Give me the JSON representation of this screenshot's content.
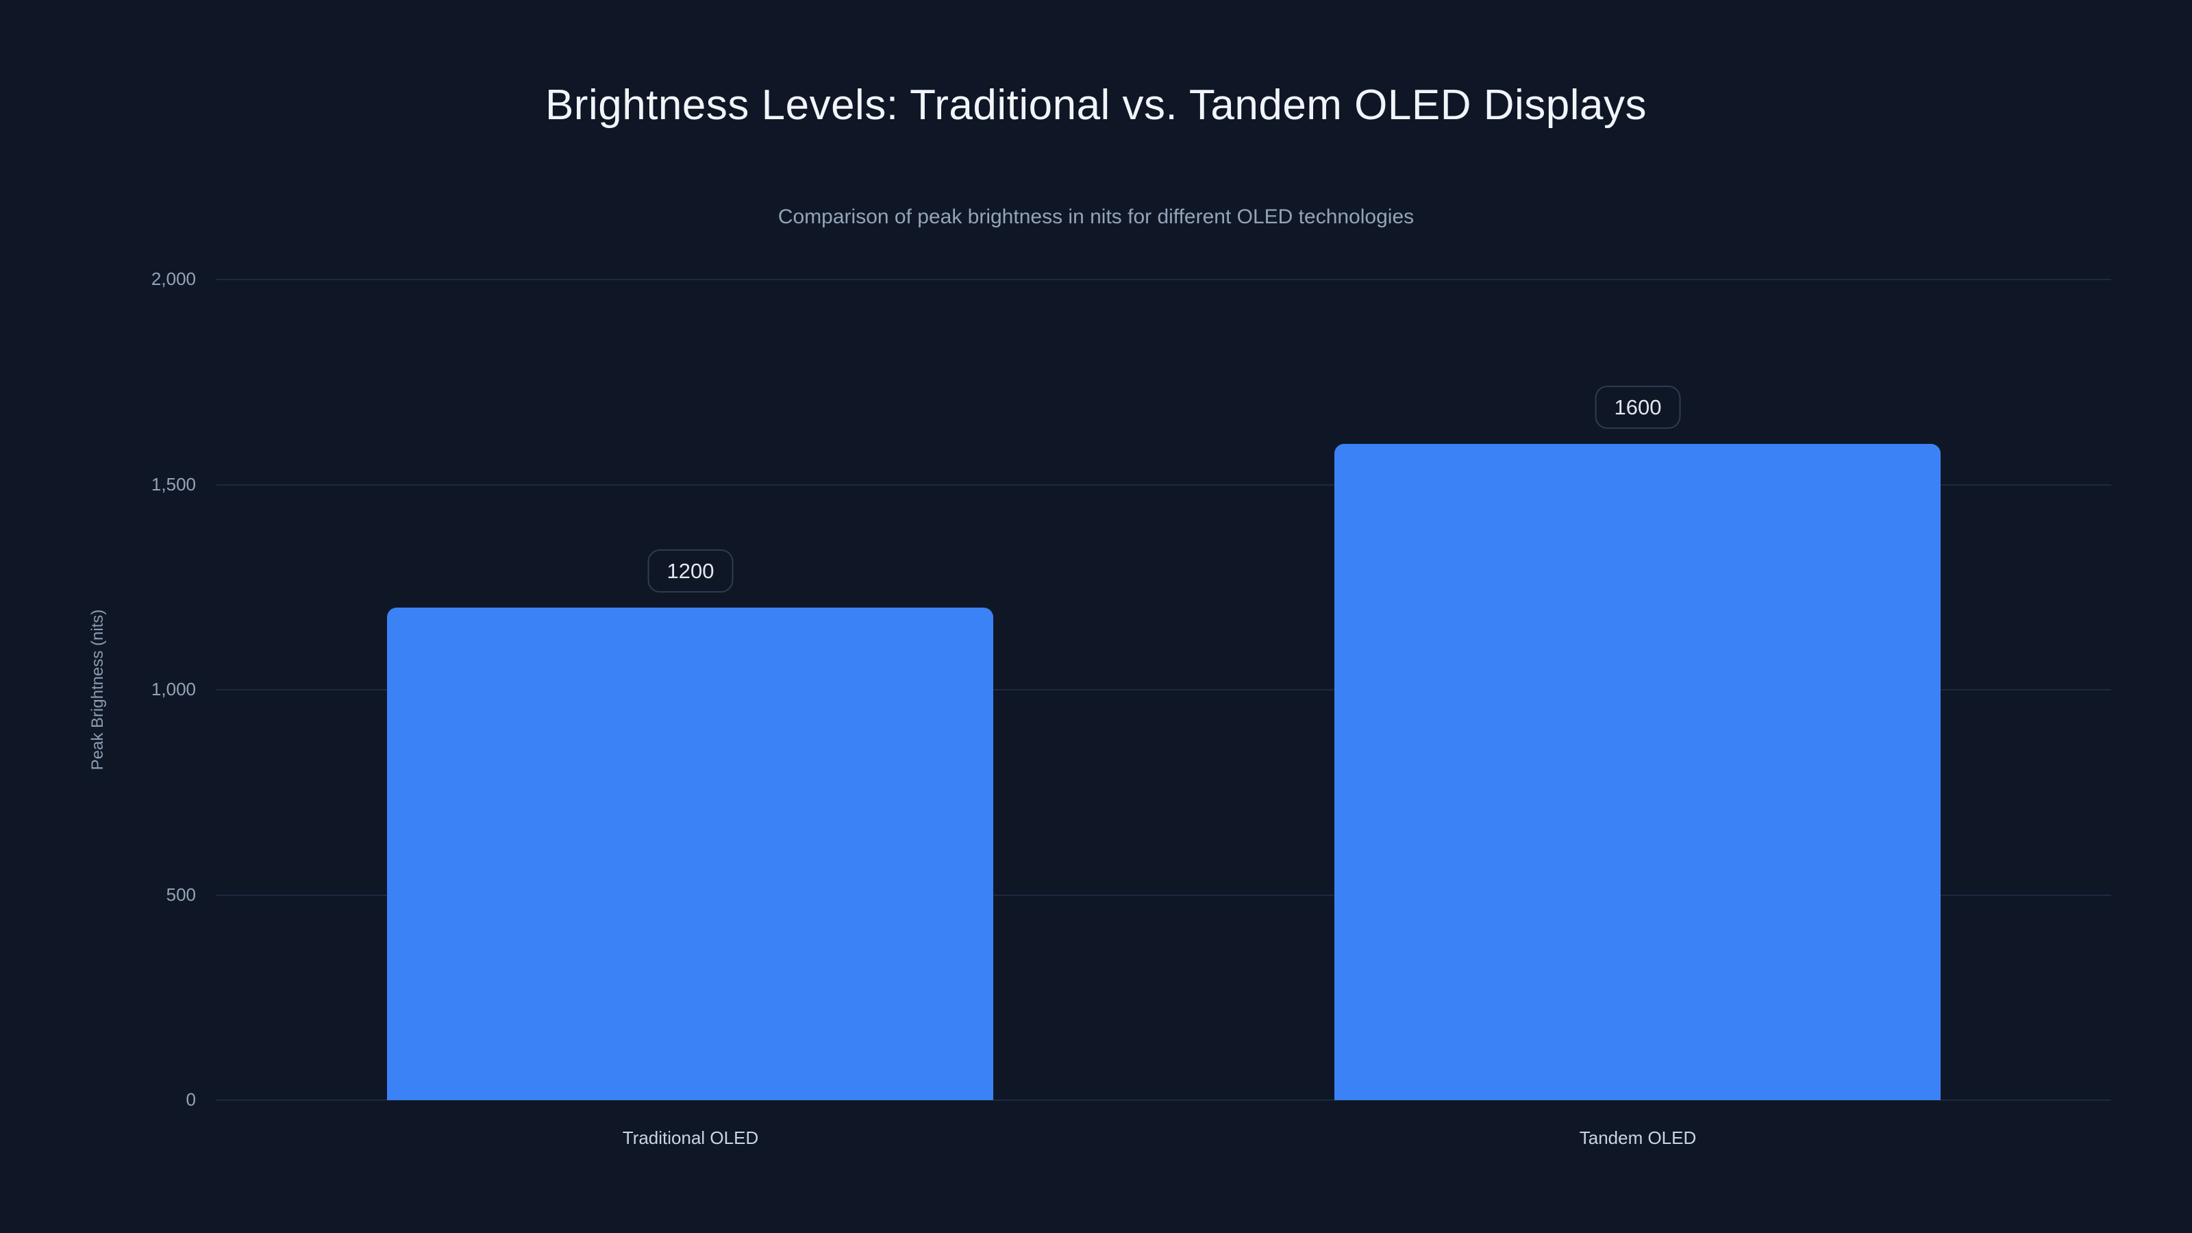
{
  "chart_data": {
    "type": "bar",
    "title": "Brightness Levels: Traditional vs. Tandem OLED Displays",
    "subtitle": "Comparison of peak brightness in nits for different OLED technologies",
    "categories": [
      "Traditional OLED",
      "Tandem OLED"
    ],
    "values": [
      1200,
      1600
    ],
    "value_labels": [
      "1200",
      "1600"
    ],
    "xlabel": "",
    "ylabel": "Peak Brightness (nits)",
    "ylim": [
      0,
      2000
    ],
    "yticks": [
      0,
      500,
      1000,
      1500,
      2000
    ],
    "ytick_labels": [
      "0",
      "500",
      "1,000",
      "1,500",
      "2,000"
    ],
    "grid": true,
    "legend": false,
    "bar_color": "#3b82f6",
    "background_color": "#0f1726"
  }
}
